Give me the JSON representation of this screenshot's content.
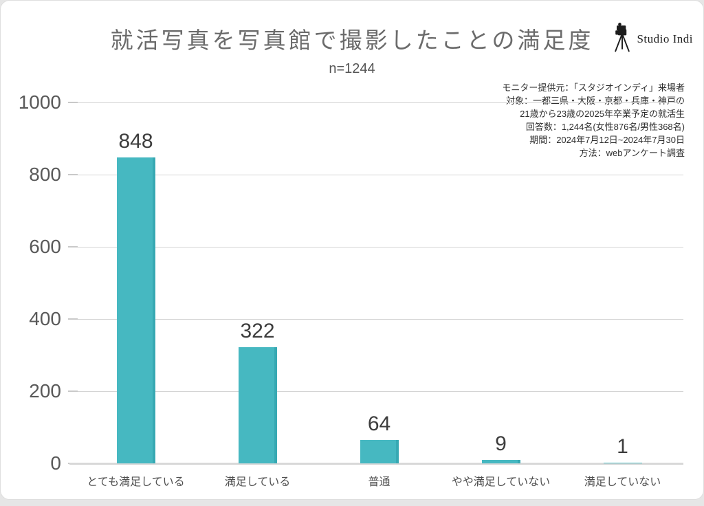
{
  "page": {
    "logo": {
      "text": "Studio Indi"
    }
  },
  "notes": {
    "lines": [
      "モニター提供元：「スタジオインディ」来場者",
      "対象：一都三県・大阪・京都・兵庫・神戸の",
      "21歳から23歳の2025年卒業予定の就活生",
      "回答数：1,244名(女性876名/男性368名)",
      "期間：2024年7月12日~2024年7月30日",
      "方法：webアンケート調査"
    ]
  },
  "chart_data": {
    "type": "bar",
    "title": "就活写真を写真館で撮影したことの満足度",
    "subtitle": "n=1244",
    "categories": [
      "とても満足している",
      "満足している",
      "普通",
      "やや満足していない",
      "満足していない"
    ],
    "values": [
      848,
      322,
      64,
      9,
      1
    ],
    "xlabel": "",
    "ylabel": "",
    "ylim": [
      0,
      1000
    ],
    "yticks": [
      0,
      200,
      400,
      600,
      800,
      1000
    ],
    "grid": true,
    "legend_position": "none",
    "bar_color": "#46b8c1",
    "bar_edge_color": "#37a9b3"
  }
}
